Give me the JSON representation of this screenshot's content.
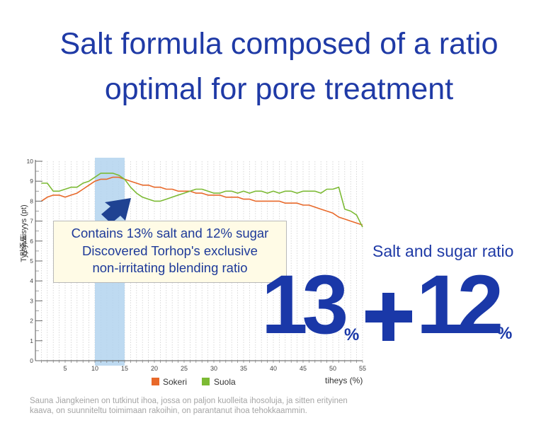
{
  "headline": {
    "line1": "Salt formula composed of a ratio",
    "line2": "optimal for pore treatment"
  },
  "callout": {
    "line1": "Contains 13% salt and 12% sugar",
    "line2": "Discovered Torhop's exclusive",
    "line3": "non-irritating blending ratio"
  },
  "ratio": {
    "label": "Salt and sugar ratio",
    "salt": "13",
    "plus": "+",
    "sugar": "12",
    "unit": "%"
  },
  "footnote": "Sauna Jiangkeinen on tutkinut ihoa, jossa on paljon kuolleita ihosoluja, ja sitten erityinen kaava, on suunniteltu toimimaan rakoihin, on parantanut ihoa tehokkaammin.",
  "colors": {
    "sokeri": "#e8692a",
    "suola": "#7cba34",
    "highlight": "#b3d4ef",
    "headline": "#1f3aa6",
    "arrow": "#1f4292"
  },
  "icons": {
    "callout_arrow": "arrow-up-right-icon"
  },
  "chart_data": {
    "type": "line",
    "ylabel": "Tyytyväisyys (pt)",
    "ylabel_secondary": "만족도",
    "xlabel": "tiheys (%)",
    "xlim": [
      0,
      55
    ],
    "ylim": [
      0,
      10
    ],
    "x_ticks": [
      5,
      10,
      15,
      20,
      25,
      30,
      35,
      40,
      45,
      50,
      55
    ],
    "y_ticks": [
      0,
      1,
      2,
      3,
      4,
      5,
      6,
      7,
      8,
      9,
      10
    ],
    "grid": "vertical dotted",
    "highlight_range": [
      10,
      15
    ],
    "legend_position": "bottom-center",
    "series": [
      {
        "name": "Sokeri",
        "x": [
          1,
          2,
          3,
          4,
          5,
          6,
          7,
          8,
          9,
          10,
          11,
          12,
          13,
          14,
          15,
          16,
          17,
          18,
          19,
          20,
          21,
          22,
          23,
          24,
          25,
          26,
          27,
          28,
          29,
          30,
          31,
          32,
          33,
          34,
          35,
          36,
          37,
          38,
          39,
          40,
          41,
          42,
          43,
          44,
          45,
          46,
          47,
          48,
          49,
          50,
          51,
          52,
          53,
          54,
          55
        ],
        "values": [
          8.0,
          8.2,
          8.3,
          8.3,
          8.2,
          8.3,
          8.4,
          8.6,
          8.8,
          9.0,
          9.1,
          9.1,
          9.2,
          9.2,
          9.1,
          9.0,
          8.9,
          8.8,
          8.8,
          8.7,
          8.7,
          8.6,
          8.6,
          8.5,
          8.5,
          8.5,
          8.4,
          8.4,
          8.3,
          8.3,
          8.3,
          8.2,
          8.2,
          8.2,
          8.1,
          8.1,
          8.0,
          8.0,
          8.0,
          8.0,
          8.0,
          7.9,
          7.9,
          7.9,
          7.8,
          7.8,
          7.7,
          7.6,
          7.5,
          7.4,
          7.2,
          7.1,
          7.0,
          6.9,
          6.8
        ]
      },
      {
        "name": "Suola",
        "x": [
          1,
          2,
          3,
          4,
          5,
          6,
          7,
          8,
          9,
          10,
          11,
          12,
          13,
          14,
          15,
          16,
          17,
          18,
          19,
          20,
          21,
          22,
          23,
          24,
          25,
          26,
          27,
          28,
          29,
          30,
          31,
          32,
          33,
          34,
          35,
          36,
          37,
          38,
          39,
          40,
          41,
          42,
          43,
          44,
          45,
          46,
          47,
          48,
          49,
          50,
          51,
          52,
          53,
          54,
          55
        ],
        "values": [
          8.9,
          8.9,
          8.5,
          8.5,
          8.6,
          8.7,
          8.7,
          8.9,
          9.0,
          9.2,
          9.4,
          9.4,
          9.4,
          9.3,
          9.1,
          8.7,
          8.4,
          8.2,
          8.1,
          8.0,
          8.0,
          8.1,
          8.2,
          8.3,
          8.4,
          8.5,
          8.6,
          8.6,
          8.5,
          8.4,
          8.4,
          8.5,
          8.5,
          8.4,
          8.5,
          8.4,
          8.5,
          8.5,
          8.4,
          8.5,
          8.4,
          8.5,
          8.5,
          8.4,
          8.5,
          8.5,
          8.5,
          8.4,
          8.6,
          8.6,
          8.7,
          7.6,
          7.5,
          7.3,
          6.7
        ]
      }
    ]
  }
}
